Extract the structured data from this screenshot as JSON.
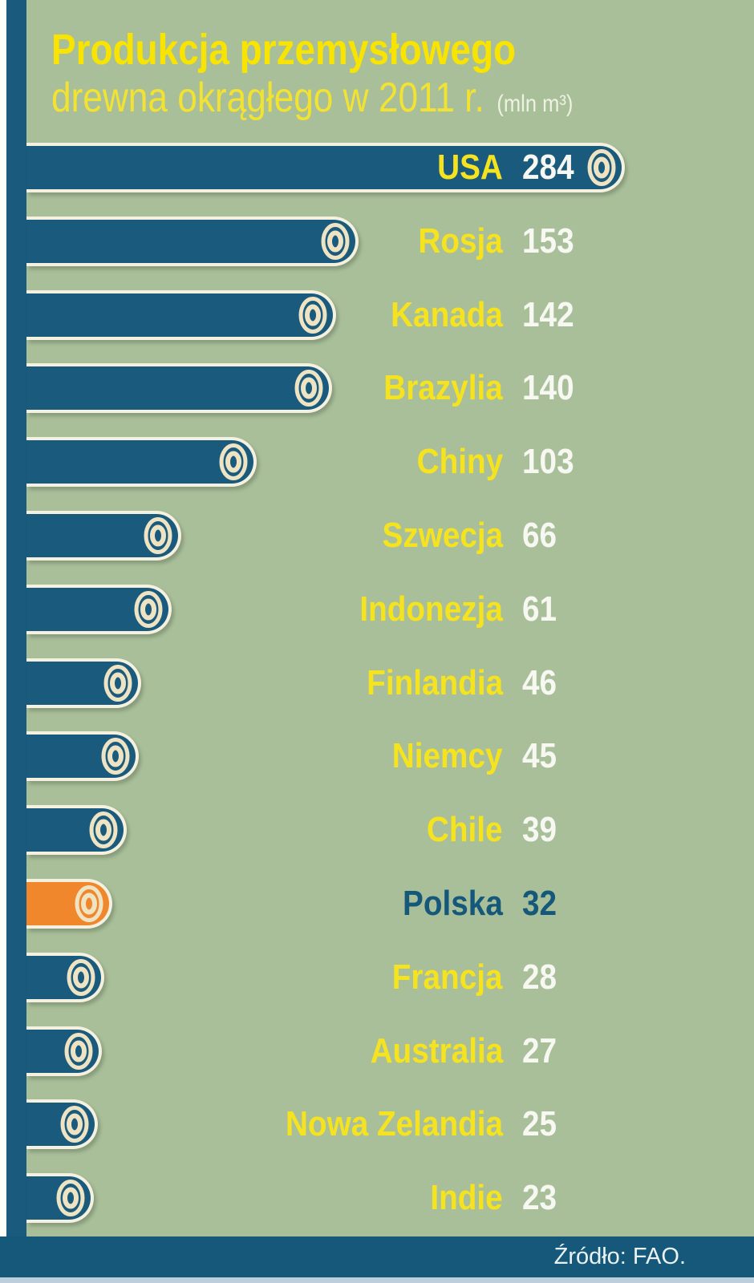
{
  "header": {
    "title_line1": "Produkcja przemysłowego",
    "title_line2": "drewna okrągłego w 2011 r.",
    "unit_label": "(mln m³)"
  },
  "footer": {
    "source": "Źródło: FAO."
  },
  "colors": {
    "background": "#a9bf99",
    "bar": "#1a5a7c",
    "highlight_bar": "#f0872c",
    "label_yellow": "#f6e320",
    "value_white": "#f6f8f1",
    "highlight_text": "#15587a",
    "bar_border": "#f5f1e0",
    "log_ring": "#eee3c2",
    "title_yellow": "#f8e400",
    "subtitle_yellow": "#f2e232",
    "unit_text": "#edf2e1",
    "footer_bg": "#15587a",
    "footer_text": "#eaf2f4",
    "bottom_strip": "#bccfda"
  },
  "chart_data": {
    "type": "bar",
    "orientation": "horizontal",
    "title": "Produkcja przemysłowego drewna okrągłego w 2011 r.",
    "unit": "mln m³",
    "categories": [
      "USA",
      "Rosja",
      "Kanada",
      "Brazylia",
      "Chiny",
      "Szwecja",
      "Indonezja",
      "Finlandia",
      "Niemcy",
      "Chile",
      "Polska",
      "Francja",
      "Australia",
      "Nowa Zelandia",
      "Indie"
    ],
    "values": [
      284,
      153,
      142,
      140,
      103,
      66,
      61,
      46,
      45,
      39,
      32,
      28,
      27,
      25,
      23
    ],
    "highlight_category": "Polska",
    "value_labels": true,
    "grid": false,
    "legend": false,
    "xlim": [
      0,
      290
    ],
    "source": "FAO"
  }
}
